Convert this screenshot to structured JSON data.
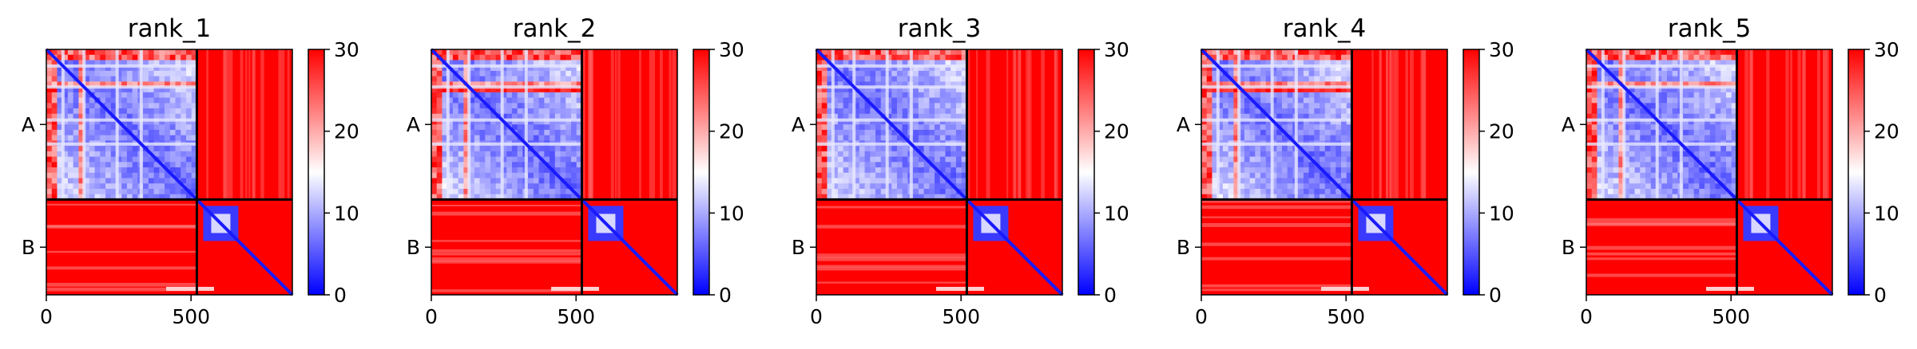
{
  "chart_data": [
    {
      "type": "heatmap",
      "title": "rank_1",
      "xticks": [
        0,
        500
      ],
      "xlim": [
        0,
        850
      ],
      "chain_boundary": 520,
      "row_labels": [
        "A",
        "B"
      ],
      "colorbar": {
        "ticks": [
          0,
          10,
          20,
          30
        ],
        "range": [
          0,
          30
        ],
        "colors": [
          "#0000ff",
          "#ffffff",
          "#ff0000"
        ]
      }
    },
    {
      "type": "heatmap",
      "title": "rank_2",
      "xticks": [
        0,
        500
      ],
      "xlim": [
        0,
        850
      ],
      "chain_boundary": 520,
      "row_labels": [
        "A",
        "B"
      ],
      "colorbar": {
        "ticks": [
          0,
          10,
          20,
          30
        ],
        "range": [
          0,
          30
        ],
        "colors": [
          "#0000ff",
          "#ffffff",
          "#ff0000"
        ]
      }
    },
    {
      "type": "heatmap",
      "title": "rank_3",
      "xticks": [
        0,
        500
      ],
      "xlim": [
        0,
        850
      ],
      "chain_boundary": 520,
      "row_labels": [
        "A",
        "B"
      ],
      "colorbar": {
        "ticks": [
          0,
          10,
          20,
          30
        ],
        "range": [
          0,
          30
        ],
        "colors": [
          "#0000ff",
          "#ffffff",
          "#ff0000"
        ]
      }
    },
    {
      "type": "heatmap",
      "title": "rank_4",
      "xticks": [
        0,
        500
      ],
      "xlim": [
        0,
        850
      ],
      "chain_boundary": 520,
      "row_labels": [
        "A",
        "B"
      ],
      "colorbar": {
        "ticks": [
          0,
          10,
          20,
          30
        ],
        "range": [
          0,
          30
        ],
        "colors": [
          "#0000ff",
          "#ffffff",
          "#ff0000"
        ]
      }
    },
    {
      "type": "heatmap",
      "title": "rank_5",
      "xticks": [
        0,
        500
      ],
      "xlim": [
        0,
        850
      ],
      "chain_boundary": 520,
      "row_labels": [
        "A",
        "B"
      ],
      "colorbar": {
        "ticks": [
          0,
          10,
          20,
          30
        ],
        "range": [
          0,
          30
        ],
        "colors": [
          "#0000ff",
          "#ffffff",
          "#ff0000"
        ]
      }
    }
  ]
}
